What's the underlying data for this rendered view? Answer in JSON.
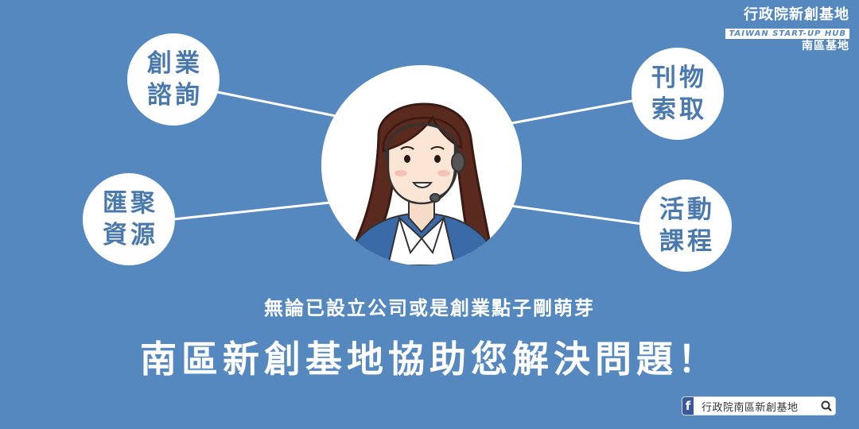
{
  "brand": {
    "title": "行政院新創基地",
    "subtitle_en": "TAIWAN START-UP HUB",
    "branch": "南區基地"
  },
  "services": {
    "left_top": [
      "創業",
      "諮詢"
    ],
    "left_bottom": [
      "匯聚",
      "資源"
    ],
    "right_top": [
      "刊物",
      "索取"
    ],
    "right_bottom": [
      "活動",
      "課程"
    ]
  },
  "subtitle": "無論已設立公司或是創業點子剛萌芽",
  "headline": "南區新創基地協助您解決問題！",
  "facebook": {
    "icon": "facebook-icon",
    "label": "行政院南區新創基地",
    "search_icon": "search-icon"
  },
  "colors": {
    "background": "#5588bf",
    "bubble_text": "#4a79ad",
    "facebook_blue": "#3b5998"
  }
}
